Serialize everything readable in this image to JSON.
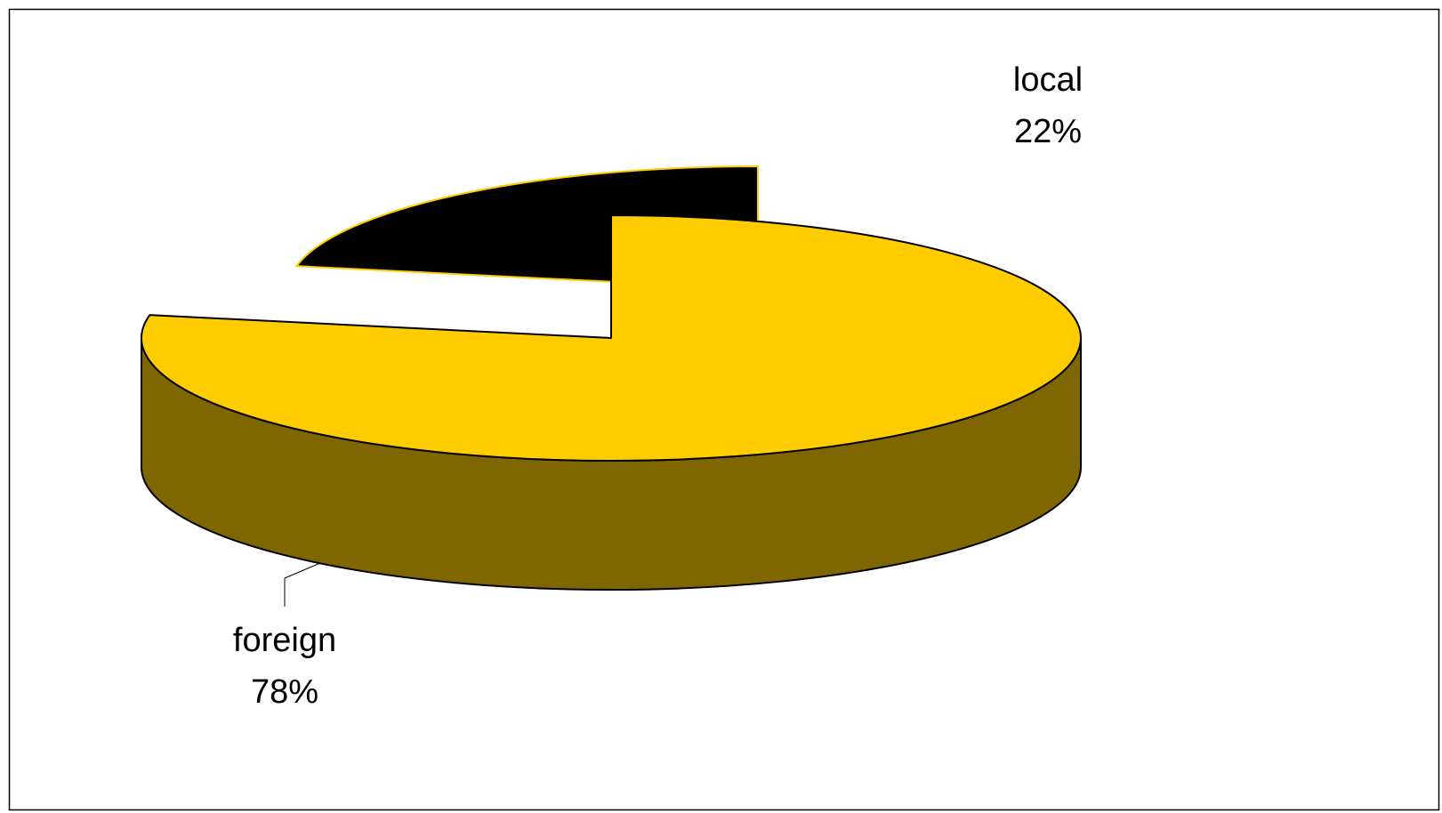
{
  "chart_data": {
    "type": "pie",
    "style": "3d-exploded",
    "title": "",
    "categories": [
      "foreign",
      "local"
    ],
    "values": [
      78,
      22
    ],
    "unit": "%",
    "colors": [
      "#FFCC00",
      "#000000"
    ],
    "side_colors": [
      "#806600",
      "#000000"
    ],
    "outline_colors": [
      "#000000",
      "#FFCC00"
    ],
    "exploded": [
      "local"
    ],
    "labels": [
      {
        "name": "foreign",
        "value_text": "78%"
      },
      {
        "name": "local",
        "value_text": "22%"
      }
    ],
    "legend": "none"
  }
}
